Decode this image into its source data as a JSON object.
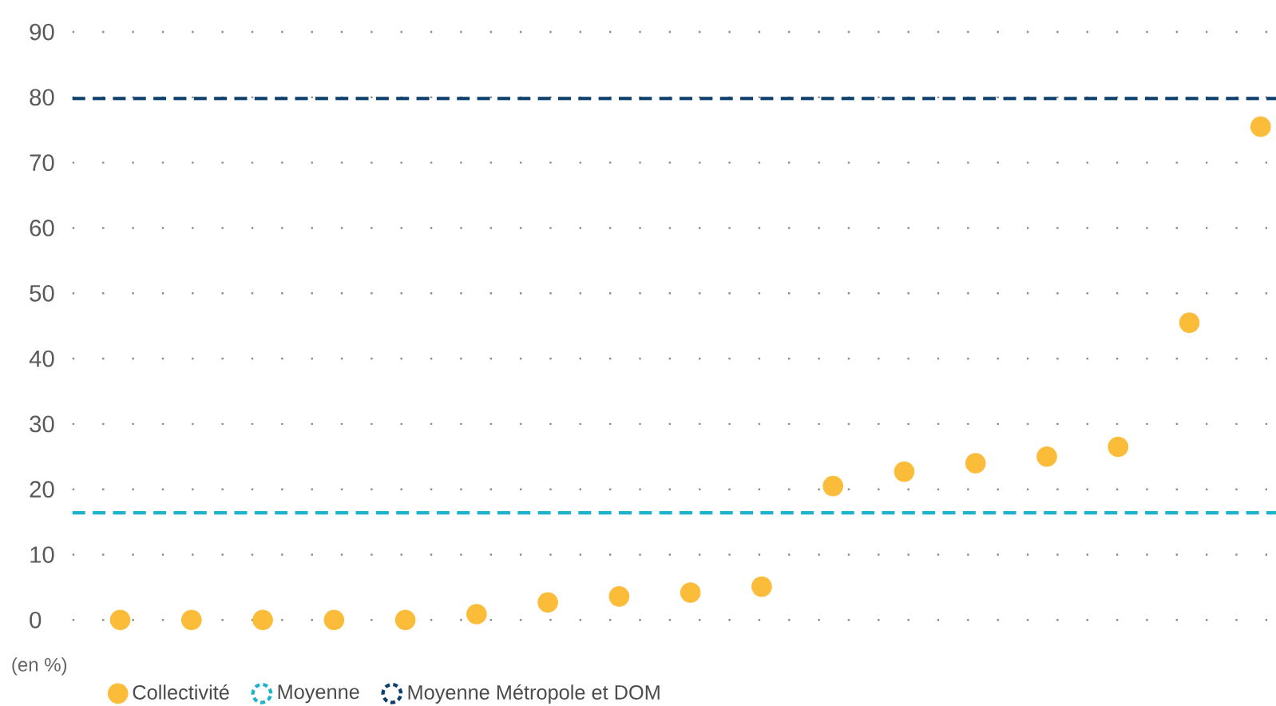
{
  "chart_data": {
    "type": "scatter",
    "categories": [
      null,
      null,
      null,
      null,
      null,
      null,
      null,
      null,
      null,
      null,
      null,
      null,
      null,
      null,
      null,
      null,
      null
    ],
    "series": [
      {
        "name": "Collectivité",
        "color": "#fbbc3a",
        "values": [
          0,
          0,
          0,
          0,
          0,
          0.9,
          2.7,
          3.6,
          4.2,
          5.1,
          20.5,
          22.7,
          24,
          25,
          26.5,
          45.5,
          75.5
        ]
      }
    ],
    "ylim": [
      0,
      90
    ],
    "yticks": [
      0,
      10,
      20,
      30,
      40,
      50,
      60,
      70,
      80,
      90
    ],
    "grid": "y",
    "tick_labels": "y",
    "legend": "bottom left",
    "ref_lines": [
      {
        "axis": "y",
        "value": 16.4,
        "label": "Moyenne",
        "color": "#1db4cb",
        "line_style": "dashed"
      },
      {
        "axis": "y",
        "value": 79.8,
        "label": "Moyenne Métropole et DOM",
        "color": "#0c3f6b",
        "line_style": "dashed"
      }
    ],
    "annotations": [
      "(en %)"
    ]
  }
}
